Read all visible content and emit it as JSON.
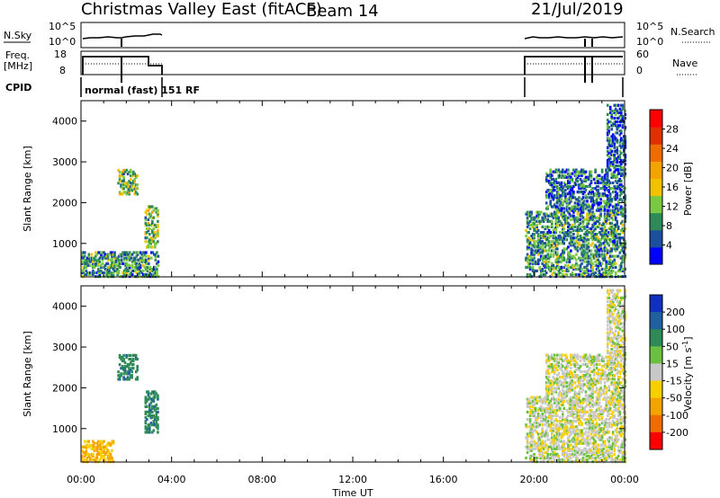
{
  "header": {
    "station": "Christmas Valley East (fitACF)",
    "beam": "Beam 14",
    "date": "21/Jul/2019"
  },
  "top_panels": {
    "nsky_label": "N.Sky",
    "nsky_ticks": [
      "10^5",
      "10^0"
    ],
    "nsearch_label": "N.Search",
    "nsearch_ticks": [
      "10^5",
      "10^0"
    ],
    "freq_label_line1": "Freq.",
    "freq_label_line2": "[MHz]",
    "freq_ticks": [
      "18",
      "8"
    ],
    "nave_label": "Nave",
    "nave_ticks": [
      "60",
      "0"
    ],
    "cpid_label": "CPID",
    "cpid_text": "normal (fast) 151 RF"
  },
  "colors": {
    "power_scale": [
      "#0000ff",
      "#1c4fa0",
      "#2e8b57",
      "#7ac943",
      "#f2c200",
      "#f4a300",
      "#ef6c00",
      "#e03000",
      "#ff0000"
    ],
    "velocity_scale": [
      "#1030c0",
      "#2060a0",
      "#2e8b57",
      "#6cc040",
      "#c8c8c8",
      "#f8d000",
      "#f4a300",
      "#ef6c00",
      "#ff0000"
    ]
  },
  "chart_data": [
    {
      "type": "heatmap",
      "panel": "power",
      "xlabel": "Time UT",
      "ylabel": "Slant Range [km]",
      "x_ticks": [
        "00:00",
        "04:00",
        "08:00",
        "12:00",
        "16:00",
        "20:00",
        "00:00"
      ],
      "x_range_hours": [
        0,
        24
      ],
      "ylim": [
        180,
        4500
      ],
      "y_ticks": [
        1000,
        2000,
        3000,
        4000
      ],
      "colorbar_label": "Power [dB]",
      "colorbar_ticks": [
        4,
        8,
        12,
        16,
        20,
        24,
        28
      ],
      "colorbar_range": [
        0,
        32
      ],
      "echo_regions": [
        {
          "t_start": 0.0,
          "t_end": 3.4,
          "r_start": 180,
          "r_end": 800,
          "typical": 10
        },
        {
          "t_start": 1.6,
          "t_end": 2.5,
          "r_start": 2200,
          "r_end": 2800,
          "typical": 14
        },
        {
          "t_start": 2.8,
          "t_end": 3.4,
          "r_start": 900,
          "r_end": 1900,
          "typical": 14
        },
        {
          "t_start": 19.6,
          "t_end": 24.0,
          "r_start": 180,
          "r_end": 1800,
          "typical": 10
        },
        {
          "t_start": 20.5,
          "t_end": 24.0,
          "r_start": 1800,
          "r_end": 2800,
          "typical": 8
        },
        {
          "t_start": 23.2,
          "t_end": 24.0,
          "r_start": 2800,
          "r_end": 4400,
          "typical": 6
        }
      ]
    },
    {
      "type": "heatmap",
      "panel": "velocity",
      "xlabel": "Time UT",
      "ylabel": "Slant Range [km]",
      "x_ticks": [
        "00:00",
        "04:00",
        "08:00",
        "12:00",
        "16:00",
        "20:00",
        "00:00"
      ],
      "x_range_hours": [
        0,
        24
      ],
      "ylim": [
        180,
        4500
      ],
      "y_ticks": [
        1000,
        2000,
        3000,
        4000
      ],
      "colorbar_label": "Velocity [m s^-1]",
      "colorbar_ticks": [
        200,
        100,
        50,
        15,
        -15,
        -50,
        -100,
        -200
      ],
      "echo_regions": [
        {
          "t_start": 0.0,
          "t_end": 1.4,
          "r_start": 180,
          "r_end": 700,
          "typical": -50
        },
        {
          "t_start": 1.6,
          "t_end": 2.5,
          "r_start": 2200,
          "r_end": 2800,
          "typical": 80
        },
        {
          "t_start": 2.8,
          "t_end": 3.4,
          "r_start": 900,
          "r_end": 1900,
          "typical": 80
        },
        {
          "t_start": 19.6,
          "t_end": 24.0,
          "r_start": 180,
          "r_end": 1800,
          "typical": 0
        },
        {
          "t_start": 20.5,
          "t_end": 24.0,
          "r_start": 1800,
          "r_end": 2800,
          "typical": 0
        },
        {
          "t_start": 23.2,
          "t_end": 24.0,
          "r_start": 2800,
          "r_end": 4400,
          "typical": 0
        }
      ]
    }
  ]
}
